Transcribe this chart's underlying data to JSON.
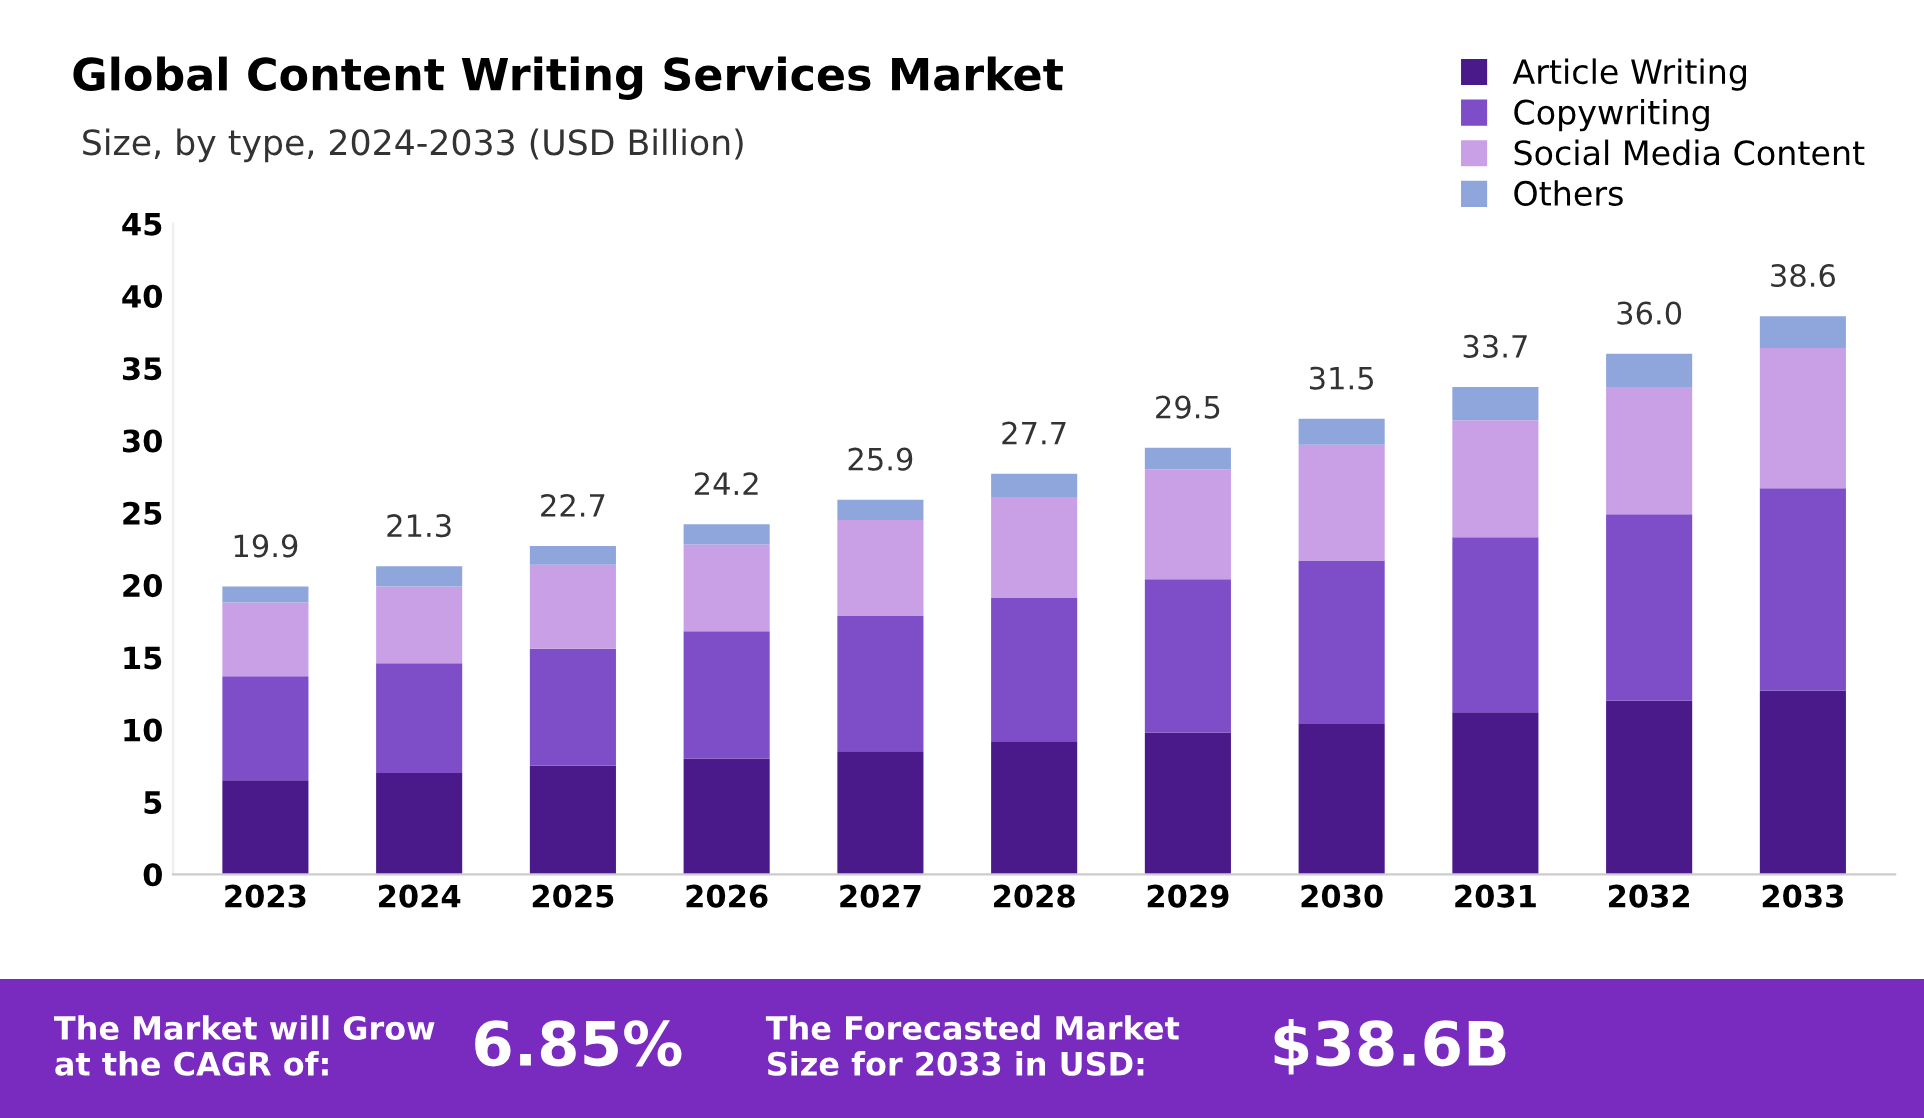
{
  "chart_data": {
    "type": "bar",
    "stacked": true,
    "title": "Global Content Writing Services Market",
    "subtitle": "Size, by type, 2024-2033 (USD Billion)",
    "categories": [
      "2023",
      "2024",
      "2025",
      "2026",
      "2027",
      "2028",
      "2029",
      "2030",
      "2031",
      "2032",
      "2033"
    ],
    "series": [
      {
        "name": "Article Writing",
        "color": "#4a1a8a",
        "values": [
          6.5,
          7.0,
          7.5,
          8.0,
          8.5,
          9.2,
          9.8,
          10.4,
          11.2,
          12.0,
          12.7
        ]
      },
      {
        "name": "Copywriting",
        "color": "#7e4ec8",
        "values": [
          7.2,
          7.6,
          8.1,
          8.8,
          9.4,
          9.9,
          10.6,
          11.3,
          12.1,
          12.9,
          14.0
        ]
      },
      {
        "name": "Social Media Content",
        "color": "#c9a0e6",
        "values": [
          5.1,
          5.3,
          5.8,
          6.0,
          6.6,
          7.0,
          7.6,
          8.0,
          8.1,
          8.8,
          9.7
        ]
      },
      {
        "name": "Others",
        "color": "#8fa6dc",
        "values": [
          1.1,
          1.4,
          1.3,
          1.4,
          1.4,
          1.6,
          1.5,
          1.8,
          2.3,
          2.3,
          2.2
        ]
      }
    ],
    "totals": [
      "19.9",
      "21.3",
      "22.7",
      "24.2",
      "25.9",
      "27.7",
      "29.5",
      "31.5",
      "33.7",
      "36.0",
      "38.6"
    ],
    "ylim": [
      0,
      45
    ],
    "yticks": [
      0,
      5,
      10,
      15,
      20,
      25,
      30,
      35,
      40,
      45
    ],
    "grid": false,
    "legend": "top right",
    "annotations": [
      "The Market will Grow at the CAGR of:",
      "6.85%",
      "The Forecasted Market Size for 2033 in USD:",
      "$38.6B"
    ]
  }
}
